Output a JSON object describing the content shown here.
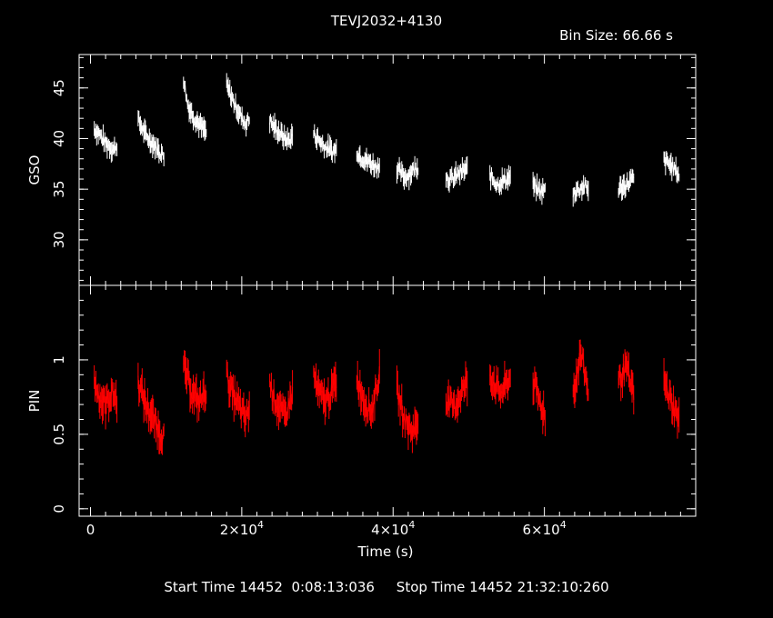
{
  "title": "TEVJ2032+4130",
  "bin_size": "Bin Size: 66.66 s",
  "footer": "Start Time 14452  0:08:13:036     Stop Time 14452 21:32:10:260",
  "colors": {
    "background": "#000000",
    "axes": "#ffffff",
    "gso": "#ffffff",
    "pin": "#ff0000"
  },
  "chart_data": [
    {
      "type": "line",
      "panel": "top",
      "ylabel": "GSO",
      "xlim": [
        -1500,
        80000
      ],
      "ylim": [
        25.5,
        48.3
      ],
      "yticks": [
        30,
        35,
        40,
        45
      ],
      "ytick_labels": [
        "30",
        "35",
        "40",
        "45"
      ],
      "series": [
        {
          "color": "#ffffff",
          "segments": [
            {
              "x": [
                500,
                1000,
                1500,
                2000,
                2500,
                3000,
                3500
              ],
              "y": [
                41.0,
                40.6,
                40.1,
                39.5,
                39.3,
                38.9,
                39.4
              ]
            },
            {
              "x": [
                6300,
                6800,
                7300,
                7800,
                8300,
                8800,
                9300,
                9700
              ],
              "y": [
                41.8,
                41.1,
                40.3,
                39.9,
                39.5,
                39.0,
                38.6,
                38.2
              ]
            },
            {
              "x": [
                12300,
                12800,
                13300,
                13800,
                14300,
                14800,
                15300
              ],
              "y": [
                46.0,
                43.5,
                42.6,
                42.0,
                41.5,
                41.0,
                40.6
              ]
            },
            {
              "x": [
                18000,
                18500,
                19000,
                19500,
                20000,
                20500,
                21000
              ],
              "y": [
                45.2,
                44.4,
                43.5,
                42.8,
                42.0,
                41.5,
                41.9
              ]
            },
            {
              "x": [
                23700,
                24200,
                24700,
                25200,
                25700,
                26200,
                26700
              ],
              "y": [
                41.8,
                41.2,
                40.8,
                40.4,
                40.0,
                39.8,
                40.3
              ]
            },
            {
              "x": [
                29500,
                30000,
                30500,
                31000,
                31500,
                32000,
                32500
              ],
              "y": [
                40.5,
                40.0,
                39.6,
                39.2,
                39.0,
                38.7,
                38.9
              ]
            },
            {
              "x": [
                35200,
                35700,
                36200,
                36700,
                37200,
                37700,
                38200
              ],
              "y": [
                38.8,
                38.2,
                38.0,
                37.7,
                37.5,
                37.2,
                37.4
              ]
            },
            {
              "x": [
                40500,
                41000,
                41500,
                42000,
                42500,
                43300
              ],
              "y": [
                37.0,
                36.6,
                36.2,
                36.4,
                36.8,
                37.3
              ]
            },
            {
              "x": [
                47000,
                47500,
                48000,
                48500,
                49000,
                49800
              ],
              "y": [
                36.2,
                35.9,
                36.1,
                36.4,
                36.7,
                37.0
              ]
            },
            {
              "x": [
                52800,
                53300,
                53800,
                54300,
                54800,
                55500
              ],
              "y": [
                36.4,
                35.9,
                35.5,
                35.7,
                35.9,
                36.3
              ]
            },
            {
              "x": [
                58500,
                59000,
                59500,
                60100
              ],
              "y": [
                35.4,
                35.0,
                34.8,
                34.9
              ]
            },
            {
              "x": [
                63800,
                64300,
                64800,
                65300,
                65800
              ],
              "y": [
                34.6,
                34.9,
                35.1,
                35.3,
                34.9
              ]
            },
            {
              "x": [
                69800,
                70300,
                70800,
                71300,
                71800
              ],
              "y": [
                35.0,
                35.2,
                35.4,
                35.8,
                36.0
              ]
            },
            {
              "x": [
                75800,
                76300,
                76800,
                77300,
                77800
              ],
              "y": [
                37.8,
                37.6,
                37.3,
                36.9,
                36.4
              ]
            }
          ]
        }
      ]
    },
    {
      "type": "line",
      "panel": "bottom",
      "ylabel": "PIN",
      "xlabel": "Time (s)",
      "xlim": [
        -1500,
        80000
      ],
      "ylim": [
        -0.05,
        1.5
      ],
      "yticks": [
        0,
        0.5,
        1
      ],
      "ytick_labels": [
        "0",
        "0.5",
        "1"
      ],
      "xticks": [
        0,
        20000,
        40000,
        60000
      ],
      "xtick_labels": [
        {
          "base": "0",
          "exp": ""
        },
        {
          "base": "2×10",
          "exp": "4"
        },
        {
          "base": "4×10",
          "exp": "4"
        },
        {
          "base": "6×10",
          "exp": "4"
        }
      ],
      "series": [
        {
          "color": "#ff0000",
          "segments": [
            {
              "x": [
                500,
                1000,
                1500,
                2000,
                2500,
                3000,
                3500
              ],
              "y": [
                0.85,
                0.78,
                0.72,
                0.7,
                0.75,
                0.78,
                0.72
              ]
            },
            {
              "x": [
                6300,
                6800,
                7300,
                7800,
                8300,
                8800,
                9300,
                9700
              ],
              "y": [
                0.85,
                0.78,
                0.7,
                0.65,
                0.6,
                0.55,
                0.5,
                0.48
              ]
            },
            {
              "x": [
                12300,
                12800,
                13300,
                13800,
                14300,
                14800,
                15300
              ],
              "y": [
                0.95,
                0.88,
                0.8,
                0.75,
                0.72,
                0.75,
                0.8
              ]
            },
            {
              "x": [
                18000,
                18500,
                19000,
                19500,
                20000,
                20500,
                21000
              ],
              "y": [
                0.9,
                0.8,
                0.75,
                0.7,
                0.65,
                0.6,
                0.68
              ]
            },
            {
              "x": [
                23700,
                24200,
                24700,
                25200,
                25700,
                26200,
                26700
              ],
              "y": [
                0.85,
                0.75,
                0.7,
                0.65,
                0.62,
                0.7,
                0.78
              ]
            },
            {
              "x": [
                29500,
                30000,
                30500,
                31000,
                31500,
                32000,
                32500
              ],
              "y": [
                0.9,
                0.8,
                0.75,
                0.72,
                0.75,
                0.8,
                0.85
              ]
            },
            {
              "x": [
                35200,
                35700,
                36200,
                36700,
                37200,
                37700,
                38200
              ],
              "y": [
                0.88,
                0.8,
                0.72,
                0.68,
                0.65,
                0.8,
                0.9
              ]
            },
            {
              "x": [
                40500,
                41000,
                41500,
                42000,
                42500,
                43300
              ],
              "y": [
                0.8,
                0.7,
                0.6,
                0.55,
                0.52,
                0.58
              ]
            },
            {
              "x": [
                47000,
                47500,
                48000,
                48500,
                49000,
                49800
              ],
              "y": [
                0.75,
                0.7,
                0.68,
                0.72,
                0.78,
                0.85
              ]
            },
            {
              "x": [
                52800,
                53300,
                53800,
                54300,
                54800,
                55500
              ],
              "y": [
                0.9,
                0.85,
                0.8,
                0.78,
                0.82,
                0.88
              ]
            },
            {
              "x": [
                58500,
                59000,
                59500,
                60100
              ],
              "y": [
                0.85,
                0.78,
                0.7,
                0.62
              ]
            },
            {
              "x": [
                63800,
                64300,
                64800,
                65300,
                65800
              ],
              "y": [
                0.78,
                0.9,
                1.05,
                0.92,
                0.8
              ]
            },
            {
              "x": [
                69800,
                70300,
                70800,
                71300,
                71800
              ],
              "y": [
                0.85,
                0.9,
                0.95,
                0.85,
                0.78
              ]
            },
            {
              "x": [
                75800,
                76300,
                76800,
                77300,
                77800
              ],
              "y": [
                0.85,
                0.78,
                0.72,
                0.65,
                0.6
              ]
            }
          ]
        }
      ]
    }
  ]
}
